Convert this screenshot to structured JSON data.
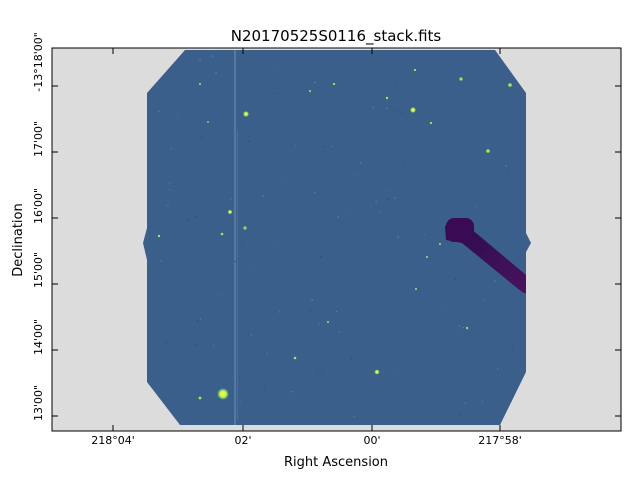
{
  "figure": {
    "title": "N20170525S0116_stack.fits",
    "xlabel": "Right Ascension",
    "ylabel": "Declination",
    "x_ticks": [
      "218°04'",
      "02'",
      "00'",
      "217°58'"
    ],
    "y_ticks": [
      "-13°18'00\"",
      "17'00\"",
      "16'00\"",
      "15'00\"",
      "14'00\"",
      "13'00\""
    ],
    "colors": {
      "axes_background": "#dcdcdc",
      "sky_background": "#3a5f8a",
      "star": "#f2ff3a",
      "star_halo": "#49c690",
      "trail": "#4b0f5e",
      "trail_core": "#2b0745"
    },
    "colormap": "viridis"
  }
}
